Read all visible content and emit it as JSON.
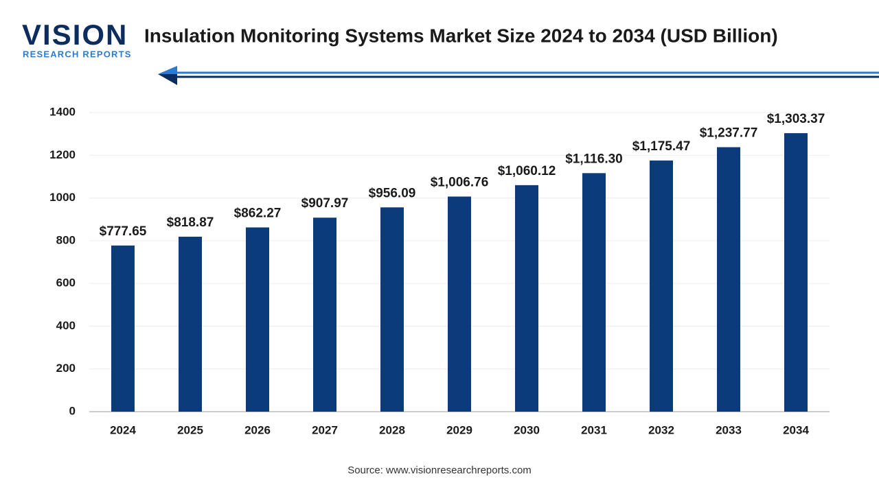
{
  "logo": {
    "name": "VISION",
    "tagline": "RESEARCH REPORTS"
  },
  "chart_data": {
    "type": "bar",
    "title": "Insulation Monitoring Systems Market Size 2024 to 2034 (USD Billion)",
    "categories": [
      "2024",
      "2025",
      "2026",
      "2027",
      "2028",
      "2029",
      "2030",
      "2031",
      "2032",
      "2033",
      "2034"
    ],
    "values": [
      777.65,
      818.87,
      862.27,
      907.97,
      956.09,
      1006.76,
      1060.12,
      1116.3,
      1175.47,
      1237.77,
      1303.37
    ],
    "value_labels": [
      "$777.65",
      "$818.87",
      "$862.27",
      "$907.97",
      "$956.09",
      "$1,006.76",
      "$1,060.12",
      "$1,116.30",
      "$1,175.47",
      "$1,237.77",
      "$1,303.37"
    ],
    "color": "#0b3b7b",
    "ylim": [
      0,
      1400
    ],
    "yticks": [
      0,
      200,
      400,
      600,
      800,
      1000,
      1200,
      1400
    ],
    "grid": true,
    "source": "Source: www.visionresearchreports.com"
  }
}
